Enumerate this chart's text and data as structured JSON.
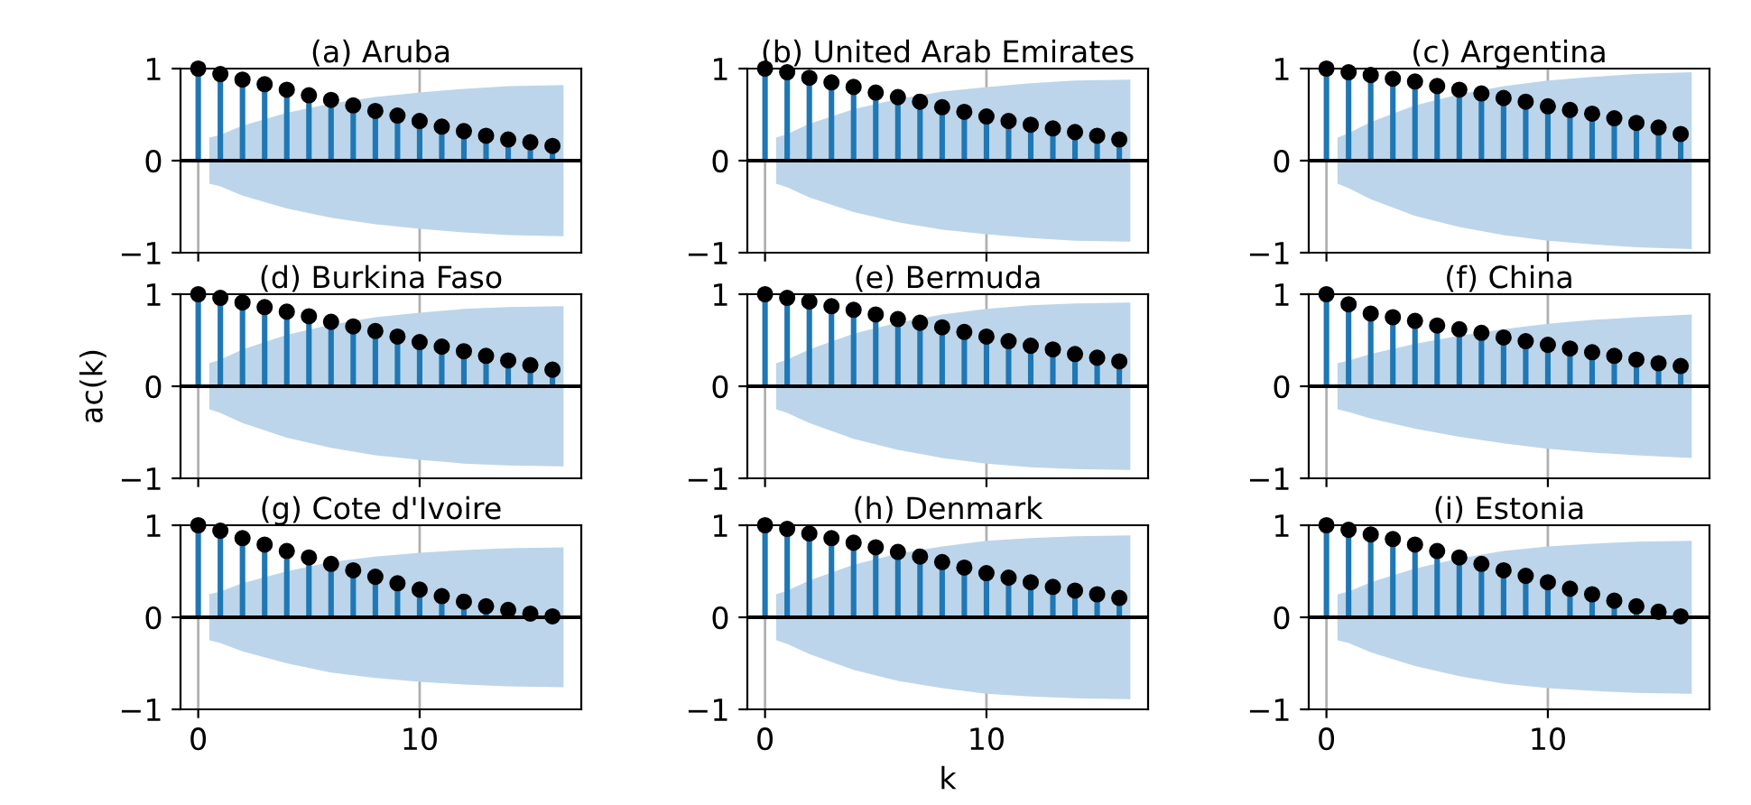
{
  "chart_data": [
    {
      "type": "lollipop",
      "title": "(a) Aruba",
      "x": [
        0,
        1,
        2,
        3,
        4,
        5,
        6,
        7,
        8,
        9,
        10,
        11,
        12,
        13,
        14,
        15,
        16
      ],
      "xlim": [
        -0.8,
        17.3
      ],
      "xticks": [
        0,
        10
      ],
      "ylim": [
        -1,
        1
      ],
      "yticks": [
        -1,
        0,
        1
      ],
      "grid": "x",
      "tick_labels": "y",
      "ref_lines": [
        {
          "axis": "y",
          "value": 0,
          "color": "#000000"
        }
      ],
      "series": [
        {
          "type": "area",
          "color": "#bcd5ea",
          "x": [
            0.5,
            1,
            2,
            4,
            6,
            8,
            10,
            12,
            14,
            16.5
          ],
          "values": [
            0.25,
            0.28,
            0.38,
            0.52,
            0.62,
            0.69,
            0.74,
            0.78,
            0.81,
            0.82
          ]
        },
        {
          "type": "area",
          "color": "#bcd5ea",
          "x": [
            0.5,
            1,
            2,
            4,
            6,
            8,
            10,
            12,
            14,
            16.5
          ],
          "values": [
            -0.25,
            -0.28,
            -0.38,
            -0.52,
            -0.62,
            -0.69,
            -0.74,
            -0.78,
            -0.81,
            -0.82
          ]
        },
        {
          "color": "#000000",
          "marker": "circle",
          "values": [
            1,
            0.94,
            0.88,
            0.83,
            0.77,
            0.71,
            0.66,
            0.6,
            0.54,
            0.49,
            0.43,
            0.37,
            0.32,
            0.27,
            0.23,
            0.2,
            0.16
          ]
        }
      ]
    },
    {
      "type": "lollipop",
      "title": "(b) United Arab Emirates",
      "x": [
        0,
        1,
        2,
        3,
        4,
        5,
        6,
        7,
        8,
        9,
        10,
        11,
        12,
        13,
        14,
        15,
        16
      ],
      "xlim": [
        -0.8,
        17.3
      ],
      "xticks": [
        0,
        10
      ],
      "ylim": [
        -1,
        1
      ],
      "yticks": [
        -1,
        0,
        1
      ],
      "grid": "x",
      "tick_labels": "y",
      "ref_lines": [
        {
          "axis": "y",
          "value": 0,
          "color": "#000000"
        }
      ],
      "series": [
        {
          "type": "area",
          "color": "#bcd5ea",
          "x": [
            0.5,
            1,
            2,
            4,
            6,
            8,
            10,
            12,
            14,
            16.5
          ],
          "values": [
            0.25,
            0.29,
            0.4,
            0.56,
            0.67,
            0.75,
            0.8,
            0.84,
            0.87,
            0.88
          ]
        },
        {
          "type": "area",
          "color": "#bcd5ea",
          "x": [
            0.5,
            1,
            2,
            4,
            6,
            8,
            10,
            12,
            14,
            16.5
          ],
          "values": [
            -0.25,
            -0.29,
            -0.4,
            -0.56,
            -0.67,
            -0.75,
            -0.8,
            -0.84,
            -0.87,
            -0.88
          ]
        },
        {
          "color": "#000000",
          "marker": "circle",
          "values": [
            1,
            0.96,
            0.9,
            0.85,
            0.8,
            0.74,
            0.69,
            0.64,
            0.58,
            0.53,
            0.48,
            0.43,
            0.39,
            0.35,
            0.31,
            0.27,
            0.23
          ]
        }
      ]
    },
    {
      "type": "lollipop",
      "title": "(c) Argentina",
      "x": [
        0,
        1,
        2,
        3,
        4,
        5,
        6,
        7,
        8,
        9,
        10,
        11,
        12,
        13,
        14,
        15,
        16
      ],
      "xlim": [
        -0.8,
        17.3
      ],
      "xticks": [
        0,
        10
      ],
      "ylim": [
        -1,
        1
      ],
      "yticks": [
        -1,
        0,
        1
      ],
      "grid": "x",
      "tick_labels": "y",
      "ref_lines": [
        {
          "axis": "y",
          "value": 0,
          "color": "#000000"
        }
      ],
      "series": [
        {
          "type": "area",
          "color": "#bcd5ea",
          "x": [
            0.5,
            1,
            2,
            4,
            6,
            8,
            10,
            12,
            14,
            16.5
          ],
          "values": [
            0.25,
            0.3,
            0.42,
            0.6,
            0.72,
            0.81,
            0.87,
            0.91,
            0.94,
            0.96
          ]
        },
        {
          "type": "area",
          "color": "#bcd5ea",
          "x": [
            0.5,
            1,
            2,
            4,
            6,
            8,
            10,
            12,
            14,
            16.5
          ],
          "values": [
            -0.25,
            -0.3,
            -0.42,
            -0.6,
            -0.72,
            -0.81,
            -0.87,
            -0.91,
            -0.94,
            -0.96
          ]
        },
        {
          "color": "#000000",
          "marker": "circle",
          "values": [
            1,
            0.96,
            0.93,
            0.89,
            0.86,
            0.81,
            0.77,
            0.73,
            0.68,
            0.64,
            0.59,
            0.55,
            0.51,
            0.46,
            0.41,
            0.36,
            0.29
          ]
        }
      ]
    },
    {
      "type": "lollipop",
      "title": "(d) Burkina Faso",
      "x": [
        0,
        1,
        2,
        3,
        4,
        5,
        6,
        7,
        8,
        9,
        10,
        11,
        12,
        13,
        14,
        15,
        16
      ],
      "xlim": [
        -0.8,
        17.3
      ],
      "xticks": [
        0,
        10
      ],
      "ylim": [
        -1,
        1
      ],
      "yticks": [
        -1,
        0,
        1
      ],
      "grid": "x",
      "tick_labels": "y",
      "ylabel": "ac(k)",
      "ref_lines": [
        {
          "axis": "y",
          "value": 0,
          "color": "#000000"
        }
      ],
      "series": [
        {
          "type": "area",
          "color": "#bcd5ea",
          "x": [
            0.5,
            1,
            2,
            4,
            6,
            8,
            10,
            12,
            14,
            16.5
          ],
          "values": [
            0.25,
            0.29,
            0.4,
            0.56,
            0.67,
            0.75,
            0.8,
            0.84,
            0.86,
            0.87
          ]
        },
        {
          "type": "area",
          "color": "#bcd5ea",
          "x": [
            0.5,
            1,
            2,
            4,
            6,
            8,
            10,
            12,
            14,
            16.5
          ],
          "values": [
            -0.25,
            -0.29,
            -0.4,
            -0.56,
            -0.67,
            -0.75,
            -0.8,
            -0.84,
            -0.86,
            -0.87
          ]
        },
        {
          "color": "#000000",
          "marker": "circle",
          "values": [
            1,
            0.96,
            0.91,
            0.86,
            0.81,
            0.76,
            0.7,
            0.65,
            0.6,
            0.54,
            0.48,
            0.43,
            0.38,
            0.33,
            0.28,
            0.23,
            0.18
          ]
        }
      ]
    },
    {
      "type": "lollipop",
      "title": "(e) Bermuda",
      "x": [
        0,
        1,
        2,
        3,
        4,
        5,
        6,
        7,
        8,
        9,
        10,
        11,
        12,
        13,
        14,
        15,
        16
      ],
      "xlim": [
        -0.8,
        17.3
      ],
      "xticks": [
        0,
        10
      ],
      "ylim": [
        -1,
        1
      ],
      "yticks": [
        -1,
        0,
        1
      ],
      "grid": "x",
      "tick_labels": "y",
      "ref_lines": [
        {
          "axis": "y",
          "value": 0,
          "color": "#000000"
        }
      ],
      "series": [
        {
          "type": "area",
          "color": "#bcd5ea",
          "x": [
            0.5,
            1,
            2,
            4,
            6,
            8,
            10,
            12,
            14,
            16.5
          ],
          "values": [
            0.25,
            0.29,
            0.4,
            0.57,
            0.69,
            0.78,
            0.84,
            0.88,
            0.9,
            0.91
          ]
        },
        {
          "type": "area",
          "color": "#bcd5ea",
          "x": [
            0.5,
            1,
            2,
            4,
            6,
            8,
            10,
            12,
            14,
            16.5
          ],
          "values": [
            -0.25,
            -0.29,
            -0.4,
            -0.57,
            -0.69,
            -0.78,
            -0.84,
            -0.88,
            -0.9,
            -0.91
          ]
        },
        {
          "color": "#000000",
          "marker": "circle",
          "values": [
            1,
            0.96,
            0.92,
            0.87,
            0.83,
            0.78,
            0.73,
            0.69,
            0.64,
            0.59,
            0.54,
            0.49,
            0.44,
            0.4,
            0.35,
            0.31,
            0.27
          ]
        }
      ]
    },
    {
      "type": "lollipop",
      "title": "(f) China",
      "x": [
        0,
        1,
        2,
        3,
        4,
        5,
        6,
        7,
        8,
        9,
        10,
        11,
        12,
        13,
        14,
        15,
        16
      ],
      "xlim": [
        -0.8,
        17.3
      ],
      "xticks": [
        0,
        10
      ],
      "ylim": [
        -1,
        1
      ],
      "yticks": [
        -1,
        0,
        1
      ],
      "grid": "x",
      "tick_labels": "y",
      "ref_lines": [
        {
          "axis": "y",
          "value": 0,
          "color": "#000000"
        }
      ],
      "series": [
        {
          "type": "area",
          "color": "#bcd5ea",
          "x": [
            0.5,
            1,
            2,
            4,
            6,
            8,
            10,
            12,
            14,
            16.5
          ],
          "values": [
            0.25,
            0.28,
            0.35,
            0.46,
            0.55,
            0.62,
            0.68,
            0.72,
            0.75,
            0.78
          ]
        },
        {
          "type": "area",
          "color": "#bcd5ea",
          "x": [
            0.5,
            1,
            2,
            4,
            6,
            8,
            10,
            12,
            14,
            16.5
          ],
          "values": [
            -0.25,
            -0.28,
            -0.35,
            -0.46,
            -0.55,
            -0.62,
            -0.68,
            -0.72,
            -0.75,
            -0.78
          ]
        },
        {
          "color": "#000000",
          "marker": "circle",
          "values": [
            1,
            0.89,
            0.79,
            0.75,
            0.71,
            0.66,
            0.62,
            0.58,
            0.53,
            0.49,
            0.45,
            0.41,
            0.37,
            0.33,
            0.29,
            0.25,
            0.22
          ]
        }
      ]
    },
    {
      "type": "lollipop",
      "title": "(g) Cote d'Ivoire",
      "x": [
        0,
        1,
        2,
        3,
        4,
        5,
        6,
        7,
        8,
        9,
        10,
        11,
        12,
        13,
        14,
        15,
        16
      ],
      "xlim": [
        -0.8,
        17.3
      ],
      "xticks": [
        0,
        10
      ],
      "ylim": [
        -1,
        1
      ],
      "yticks": [
        -1,
        0,
        1
      ],
      "grid": "x",
      "ref_lines": [
        {
          "axis": "y",
          "value": 0,
          "color": "#000000"
        }
      ],
      "series": [
        {
          "type": "area",
          "color": "#bcd5ea",
          "x": [
            0.5,
            1,
            2,
            4,
            6,
            8,
            10,
            12,
            14,
            16.5
          ],
          "values": [
            0.25,
            0.28,
            0.37,
            0.5,
            0.6,
            0.66,
            0.7,
            0.73,
            0.75,
            0.76
          ]
        },
        {
          "type": "area",
          "color": "#bcd5ea",
          "x": [
            0.5,
            1,
            2,
            4,
            6,
            8,
            10,
            12,
            14,
            16.5
          ],
          "values": [
            -0.25,
            -0.28,
            -0.37,
            -0.5,
            -0.6,
            -0.66,
            -0.7,
            -0.73,
            -0.75,
            -0.76
          ]
        },
        {
          "color": "#000000",
          "marker": "circle",
          "values": [
            1,
            0.94,
            0.86,
            0.79,
            0.72,
            0.65,
            0.58,
            0.51,
            0.44,
            0.37,
            0.3,
            0.23,
            0.17,
            0.12,
            0.08,
            0.04,
            0.01
          ]
        }
      ]
    },
    {
      "type": "lollipop",
      "title": "(h) Denmark",
      "x": [
        0,
        1,
        2,
        3,
        4,
        5,
        6,
        7,
        8,
        9,
        10,
        11,
        12,
        13,
        14,
        15,
        16
      ],
      "xlim": [
        -0.8,
        17.3
      ],
      "xticks": [
        0,
        10
      ],
      "ylim": [
        -1,
        1
      ],
      "yticks": [
        -1,
        0,
        1
      ],
      "grid": "x",
      "xlabel": "k",
      "ref_lines": [
        {
          "axis": "y",
          "value": 0,
          "color": "#000000"
        }
      ],
      "series": [
        {
          "type": "area",
          "color": "#bcd5ea",
          "x": [
            0.5,
            1,
            2,
            4,
            6,
            8,
            10,
            12,
            14,
            16.5
          ],
          "values": [
            0.25,
            0.29,
            0.4,
            0.57,
            0.69,
            0.77,
            0.83,
            0.86,
            0.88,
            0.89
          ]
        },
        {
          "type": "area",
          "color": "#bcd5ea",
          "x": [
            0.5,
            1,
            2,
            4,
            6,
            8,
            10,
            12,
            14,
            16.5
          ],
          "values": [
            -0.25,
            -0.29,
            -0.4,
            -0.57,
            -0.69,
            -0.77,
            -0.83,
            -0.86,
            -0.88,
            -0.89
          ]
        },
        {
          "color": "#000000",
          "marker": "circle",
          "values": [
            1,
            0.96,
            0.91,
            0.86,
            0.81,
            0.76,
            0.71,
            0.66,
            0.6,
            0.54,
            0.48,
            0.43,
            0.38,
            0.33,
            0.29,
            0.25,
            0.21
          ]
        }
      ]
    },
    {
      "type": "lollipop",
      "title": "(i) Estonia",
      "x": [
        0,
        1,
        2,
        3,
        4,
        5,
        6,
        7,
        8,
        9,
        10,
        11,
        12,
        13,
        14,
        15,
        16
      ],
      "xlim": [
        -0.8,
        17.3
      ],
      "xticks": [
        0,
        10
      ],
      "ylim": [
        -1,
        1
      ],
      "yticks": [
        -1,
        0,
        1
      ],
      "grid": "x",
      "ref_lines": [
        {
          "axis": "y",
          "value": 0,
          "color": "#000000"
        }
      ],
      "series": [
        {
          "type": "area",
          "color": "#bcd5ea",
          "x": [
            0.5,
            1,
            2,
            4,
            6,
            8,
            10,
            12,
            14,
            16.5
          ],
          "values": [
            0.25,
            0.28,
            0.38,
            0.53,
            0.64,
            0.72,
            0.77,
            0.8,
            0.82,
            0.83
          ]
        },
        {
          "type": "area",
          "color": "#bcd5ea",
          "x": [
            0.5,
            1,
            2,
            4,
            6,
            8,
            10,
            12,
            14,
            16.5
          ],
          "values": [
            -0.25,
            -0.28,
            -0.38,
            -0.53,
            -0.64,
            -0.72,
            -0.77,
            -0.8,
            -0.82,
            -0.83
          ]
        },
        {
          "color": "#000000",
          "marker": "circle",
          "values": [
            1,
            0.95,
            0.9,
            0.85,
            0.79,
            0.72,
            0.65,
            0.58,
            0.51,
            0.45,
            0.38,
            0.31,
            0.25,
            0.18,
            0.12,
            0.06,
            0.01
          ]
        }
      ]
    }
  ]
}
